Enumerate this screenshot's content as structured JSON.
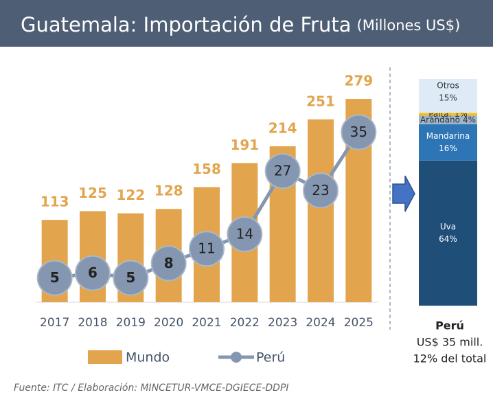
{
  "chart_data": [
    {
      "type": "bar",
      "title": "Guatemala: Importación de Fruta",
      "subtitle": "(Millones US$)",
      "categories": [
        "2017",
        "2018",
        "2019",
        "2020",
        "2021",
        "2022",
        "2023",
        "2024",
        "2025"
      ],
      "series": [
        {
          "name": "Mundo",
          "type": "bar",
          "color": "#e2a54e",
          "values": [
            113,
            125,
            122,
            128,
            158,
            191,
            214,
            251,
            279
          ]
        },
        {
          "name": "Perú",
          "type": "line",
          "axis": "y2",
          "color": "#8496b0",
          "values": [
            5,
            6,
            5,
            8,
            11,
            14,
            27,
            23,
            35
          ]
        }
      ],
      "ylim": [
        0,
        280
      ],
      "y2lim": [
        0,
        42
      ],
      "source": "Fuente: ITC / Elaboración: MINCETUR-VMCE-DGIECE-DDPI"
    },
    {
      "type": "stacked_bar",
      "categories": [
        "Uva",
        "Mandarina",
        "Arándano",
        "Palta:",
        "Otros"
      ],
      "values": [
        64,
        16,
        4,
        1,
        15
      ],
      "value_labels": [
        "64%",
        "16%",
        "4%",
        "1%",
        "15%"
      ],
      "colors": [
        "#1f4e79",
        "#2e75b6",
        "#9fb6cd",
        "#ffc000",
        "#deebf7"
      ],
      "ylim": [
        0,
        100
      ],
      "caption": [
        "Perú",
        "US$ 35 mill.",
        "12% del total"
      ]
    }
  ]
}
